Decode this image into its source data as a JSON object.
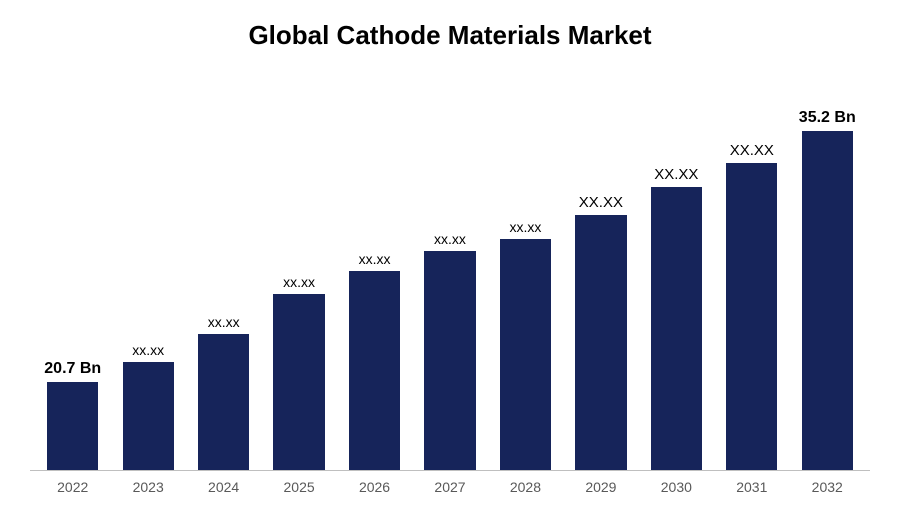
{
  "chart": {
    "type": "bar",
    "title": "Global Cathode Materials Market",
    "title_fontsize": 26,
    "title_color": "#000000",
    "background_color": "#ffffff",
    "axis_line_color": "#bfbfbf",
    "bar_color": "#16245a",
    "bar_width_ratio": 0.68,
    "ylim_max": 40,
    "x_label_color": "#595959",
    "x_label_fontsize": 14,
    "data_label_color": "#000000",
    "data_label_fontsize": 14,
    "data_label_bold_fontsize": 16,
    "bars": [
      {
        "category": "2022",
        "value": 20.7,
        "height_pct": 22,
        "label": "20.7 Bn",
        "bold": true
      },
      {
        "category": "2023",
        "value": 22.0,
        "height_pct": 27,
        "label": "xx.xx",
        "bold": false
      },
      {
        "category": "2024",
        "value": 23.5,
        "height_pct": 34,
        "label": "xx.xx",
        "bold": false
      },
      {
        "category": "2025",
        "value": 25.0,
        "height_pct": 44,
        "label": "xx.xx",
        "bold": false
      },
      {
        "category": "2026",
        "value": 26.8,
        "height_pct": 50,
        "label": "xx.xx",
        "bold": false
      },
      {
        "category": "2027",
        "value": 28.2,
        "height_pct": 55,
        "label": "xx.xx",
        "bold": false
      },
      {
        "category": "2028",
        "value": 29.5,
        "height_pct": 58,
        "label": "xx.xx",
        "bold": false
      },
      {
        "category": "2029",
        "value": 31.0,
        "height_pct": 64,
        "label": "XX.XX",
        "bold": false,
        "upper": true
      },
      {
        "category": "2030",
        "value": 32.4,
        "height_pct": 71,
        "label": "XX.XX",
        "bold": false,
        "upper": true
      },
      {
        "category": "2031",
        "value": 33.8,
        "height_pct": 77,
        "label": "XX.XX",
        "bold": false,
        "upper": true
      },
      {
        "category": "2032",
        "value": 35.2,
        "height_pct": 85,
        "label": "35.2 Bn",
        "bold": true
      }
    ]
  }
}
